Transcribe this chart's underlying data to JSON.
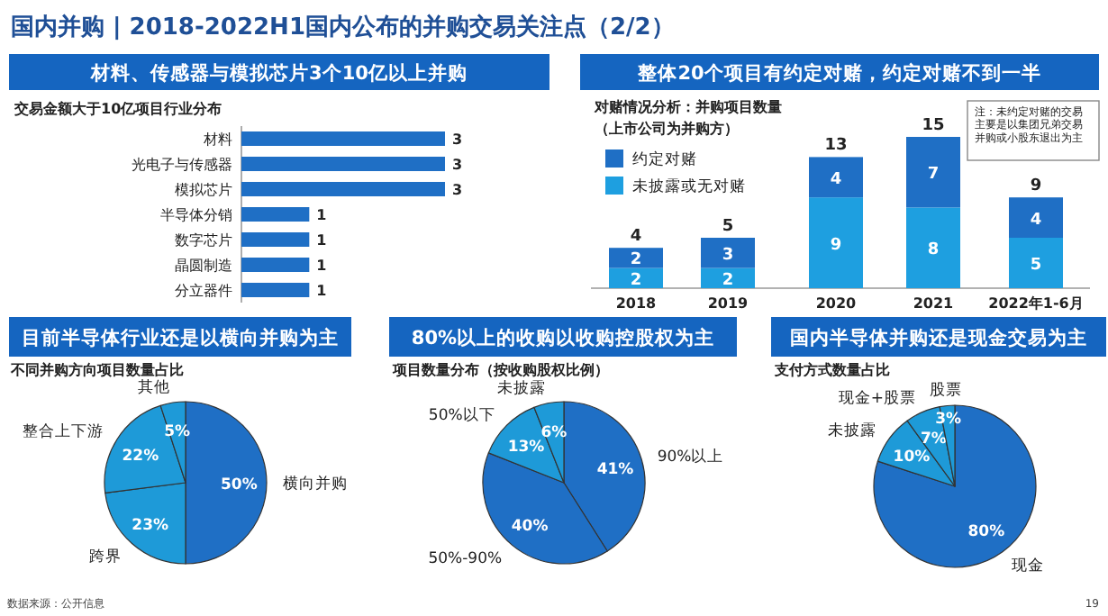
{
  "chart_data": [
    {
      "type": "other",
      "title": "国内并购 | 2018-2022H1国内公布的并购交易关注点（2/2）",
      "annotations": [
        "数据来源：公开信息",
        "19"
      ]
    },
    {
      "type": "bar",
      "orientation": "horizontal",
      "title": "材料、传感器与模拟芯片3个10亿以上并购",
      "subtitle": "交易金额大于10亿项目行业分布",
      "categories": [
        "材料",
        "光电子与传感器",
        "模拟芯片",
        "半导体分销",
        "数字芯片",
        "晶圆制造",
        "分立器件"
      ],
      "values": [
        3,
        3,
        3,
        1,
        1,
        1,
        1
      ],
      "color": "#1f6fc5",
      "data_labels": true
    },
    {
      "type": "bar",
      "stacked": true,
      "title": "整体20个项目有约定对赌，约定对赌不到一半",
      "subtitle": "对赌情况分析：并购项目数量（上市公司为并购方）",
      "categories": [
        "2018",
        "2019",
        "2020",
        "2021",
        "2022年1-6月"
      ],
      "series": [
        {
          "name": "未披露或无对赌",
          "color": "#1e9fe0",
          "values": [
            2,
            2,
            9,
            8,
            5
          ]
        },
        {
          "name": "约定对赌",
          "color": "#1f6fc5",
          "values": [
            2,
            3,
            4,
            7,
            4
          ]
        }
      ],
      "totals": [
        "4",
        "5",
        "13",
        "15",
        "9"
      ],
      "data_labels": true,
      "legend": "top left",
      "annotations": [
        "注：未约定对赌的交易主要是以集团兄弟交易并购或小股东退出为主"
      ]
    },
    {
      "type": "pie",
      "title": "目前半导体行业还是以横向并购为主",
      "subtitle": "不同并购方向项目数量占比",
      "categories": [
        "横向并购",
        "跨界",
        "整合上下游",
        "其他"
      ],
      "values": [
        50,
        23,
        22,
        5
      ],
      "value_labels": [
        "50%",
        "23%",
        "22%",
        "5%"
      ],
      "colors": [
        "#1f6fc5",
        "#1e9ad8",
        "#1e9ad8",
        "#1e9ad8"
      ]
    },
    {
      "type": "pie",
      "title": "80%以上的收购以收购控股权为主",
      "subtitle": "项目数量分布（按收购股权比例）",
      "categories": [
        "90%以上",
        "50%-90%",
        "50%以下",
        "未披露"
      ],
      "values": [
        41,
        40,
        13,
        6
      ],
      "value_labels": [
        "41%",
        "40%",
        "13%",
        "6%"
      ],
      "colors": [
        "#1f6fc5",
        "#1f6fc5",
        "#1e9ad8",
        "#1e9ad8"
      ]
    },
    {
      "type": "pie",
      "title": "国内半导体并购还是现金交易为主",
      "subtitle": "支付方式数量占比",
      "categories": [
        "现金",
        "未披露",
        "现金+股票",
        "股票"
      ],
      "values": [
        80,
        10,
        7,
        3
      ],
      "value_labels": [
        "80%",
        "10%",
        "7%",
        "3%"
      ],
      "colors": [
        "#1f6fc5",
        "#1e9ad8",
        "#1e9ad8",
        "#1e9ad8"
      ]
    }
  ]
}
